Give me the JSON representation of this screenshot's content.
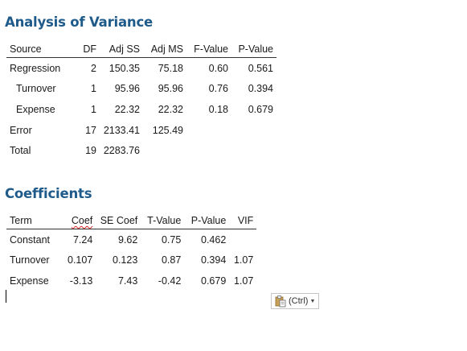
{
  "anova": {
    "title": "Analysis of Variance",
    "columns": [
      "Source",
      "DF",
      "Adj SS",
      "Adj MS",
      "F-Value",
      "P-Value"
    ],
    "rows": [
      {
        "source": "Regression",
        "df": "2",
        "adj_ss": "150.35",
        "adj_ms": "75.18",
        "f": "0.60",
        "p": "0.561"
      },
      {
        "source": "Turnover",
        "df": "1",
        "adj_ss": "95.96",
        "adj_ms": "95.96",
        "f": "0.76",
        "p": "0.394"
      },
      {
        "source": "Expense",
        "df": "1",
        "adj_ss": "22.32",
        "adj_ms": "22.32",
        "f": "0.18",
        "p": "0.679"
      },
      {
        "source": "Error",
        "df": "17",
        "adj_ss": "2133.41",
        "adj_ms": "125.49",
        "f": "",
        "p": ""
      },
      {
        "source": "Total",
        "df": "19",
        "adj_ss": "2283.76",
        "adj_ms": "",
        "f": "",
        "p": ""
      }
    ]
  },
  "coefficients": {
    "title": "Coefficients",
    "columns": [
      "Term",
      "Coef",
      "SE Coef",
      "T-Value",
      "P-Value",
      "VIF"
    ],
    "rows": [
      {
        "term": "Constant",
        "coef": "7.24",
        "se_coef": "9.62",
        "t": "0.75",
        "p": "0.462",
        "vif": ""
      },
      {
        "term": "Turnover",
        "coef": "0.107",
        "se_coef": "0.123",
        "t": "0.87",
        "p": "0.394",
        "vif": "1.07"
      },
      {
        "term": "Expense",
        "coef": "-3.13",
        "se_coef": "7.43",
        "t": "-0.42",
        "p": "0.679",
        "vif": "1.07"
      }
    ]
  },
  "paste_options": {
    "label": "(Ctrl)",
    "icon": "clipboard-icon"
  }
}
